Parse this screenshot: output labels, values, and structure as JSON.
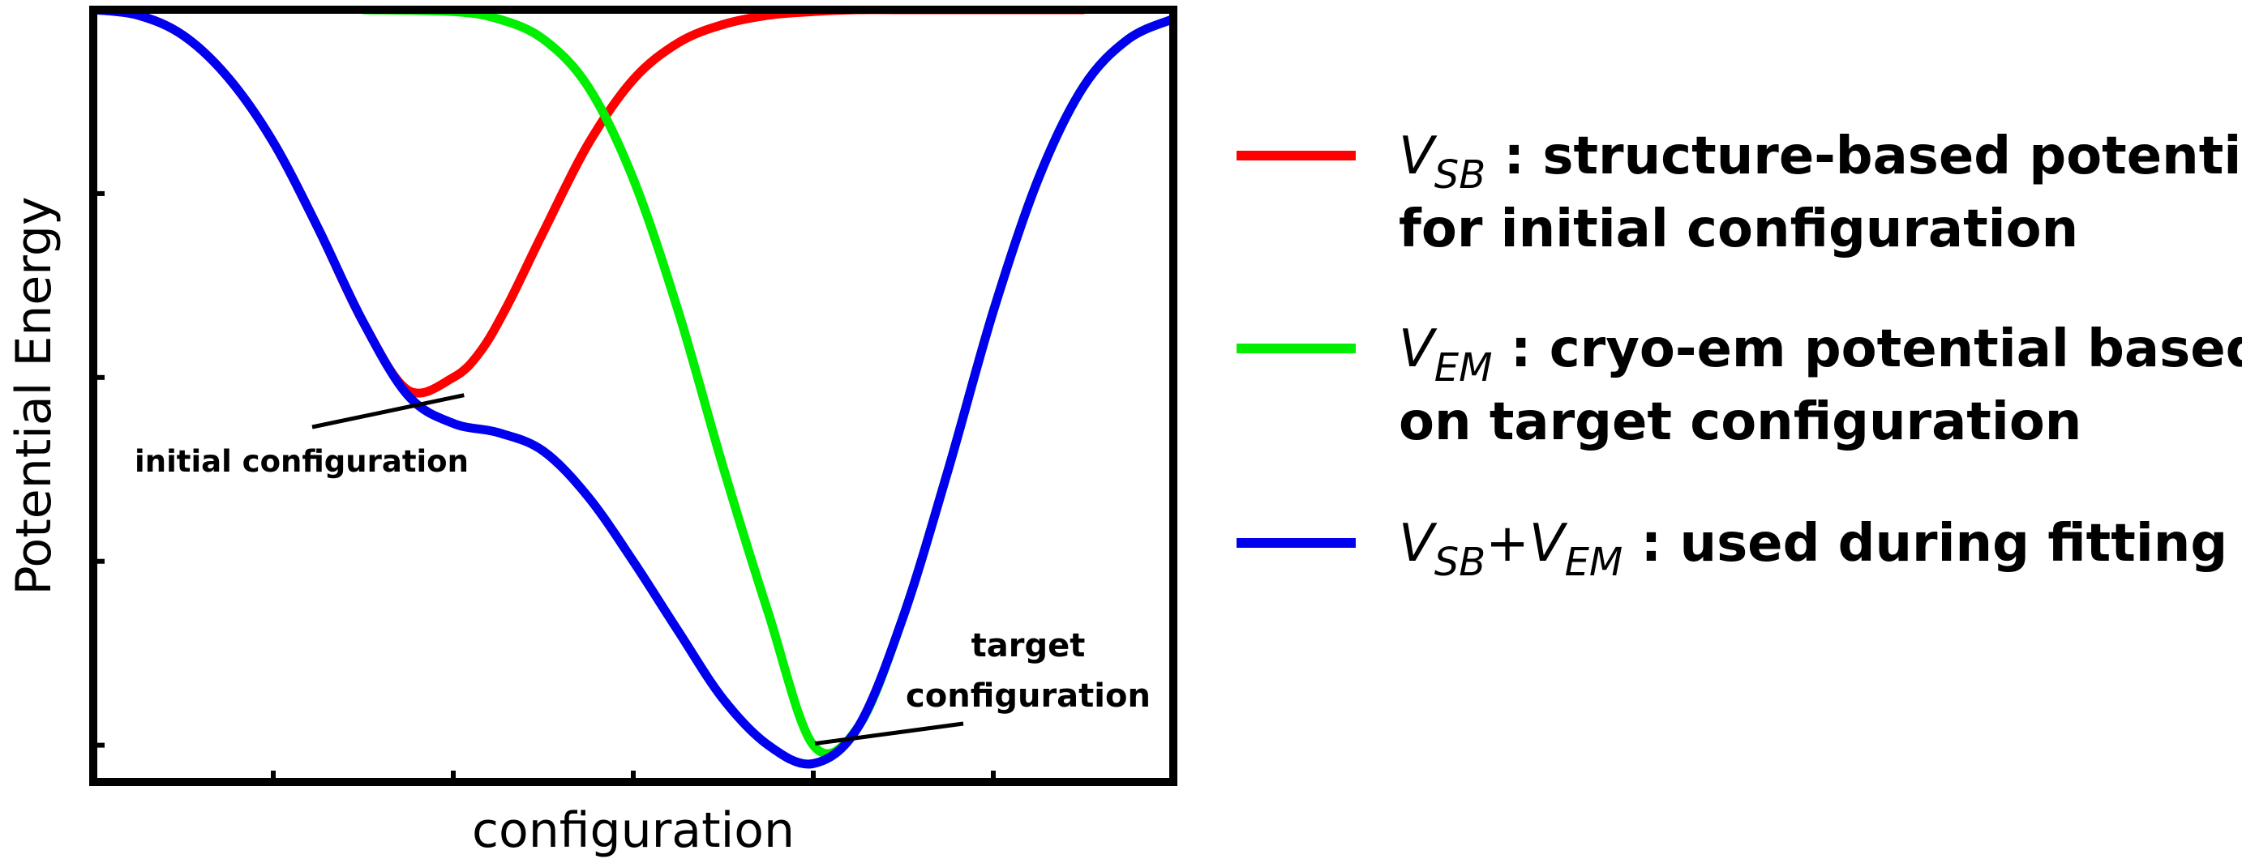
{
  "chart_data": {
    "type": "line",
    "xlabel": "configuration",
    "ylabel": "Potential Energy",
    "xlim": [
      0,
      6
    ],
    "ylim": [
      0,
      4.2
    ],
    "x_ticks": [
      1,
      2,
      3,
      4,
      5
    ],
    "y_ticks": [
      0.2,
      1.2,
      2.2,
      3.2
    ],
    "grid": false,
    "legend_position": "right",
    "series": [
      {
        "legend_name": "V_SB : structure-based potential for initial configuration",
        "color": "#ff0000",
        "x": [
          0,
          0.25,
          0.5,
          0.75,
          1.0,
          1.25,
          1.5,
          1.75,
          2.0,
          2.15,
          2.3,
          2.5,
          2.75,
          3.0,
          3.25,
          3.5,
          3.75,
          4.0,
          4.25,
          4.5,
          5.0,
          5.5
        ],
        "y": [
          4.2,
          4.17,
          4.06,
          3.83,
          3.48,
          3.01,
          2.5,
          2.13,
          2.2,
          2.34,
          2.59,
          2.99,
          3.47,
          3.82,
          4.02,
          4.12,
          4.17,
          4.19,
          4.2,
          4.2,
          4.2,
          4.2
        ]
      },
      {
        "legend_name": "V_EM : cryo-em potential based on target configuration",
        "color": "#00ee00",
        "x": [
          1.5,
          2.0,
          2.25,
          2.5,
          2.75,
          3.0,
          3.25,
          3.5,
          3.75,
          4.0,
          4.25,
          4.5,
          4.75,
          5.0,
          5.25,
          5.5,
          5.75,
          6.0
        ],
        "y": [
          4.2,
          4.19,
          4.15,
          4.04,
          3.78,
          3.28,
          2.56,
          1.71,
          0.92,
          0.2,
          0.3,
          0.9,
          1.7,
          2.56,
          3.28,
          3.78,
          4.04,
          4.15
        ]
      },
      {
        "legend_name": "V_SB+V_EM : used during fitting",
        "color": "#0000ee",
        "x": [
          0,
          0.25,
          0.5,
          0.75,
          1.0,
          1.25,
          1.5,
          1.75,
          2.0,
          2.25,
          2.5,
          2.75,
          3.0,
          3.25,
          3.5,
          3.75,
          4.0,
          4.25,
          4.5,
          4.75,
          5.0,
          5.25,
          5.5,
          5.75,
          6.0
        ],
        "y": [
          4.2,
          4.17,
          4.06,
          3.83,
          3.48,
          3.01,
          2.5,
          2.1,
          1.95,
          1.9,
          1.8,
          1.55,
          1.2,
          0.82,
          0.45,
          0.2,
          0.1,
          0.3,
          0.9,
          1.7,
          2.56,
          3.28,
          3.78,
          4.04,
          4.15
        ]
      }
    ],
    "annotations": [
      {
        "text": "initial configuration",
        "point": [
          2.15,
          2.13
        ]
      },
      {
        "lines": [
          "target",
          "configuration"
        ],
        "point": [
          4.0,
          0.2
        ]
      }
    ]
  },
  "legend": [
    {
      "color": "#ff0000",
      "sym_main": "V",
      "sym_sub": "SB",
      "sym_main2": "",
      "sym_sub2": "",
      "text1": " : structure-based potential",
      "text2": "for initial configuration"
    },
    {
      "color": "#00ee00",
      "sym_main": "V",
      "sym_sub": "EM",
      "sym_main2": "",
      "sym_sub2": "",
      "text1": " : cryo-em potential based",
      "text2": "on target configuration"
    },
    {
      "color": "#0000ee",
      "sym_main": "V",
      "sym_sub": "SB",
      "sym_main2": "+V",
      "sym_sub2": "EM",
      "text1": " : used during fitting",
      "text2": ""
    }
  ]
}
